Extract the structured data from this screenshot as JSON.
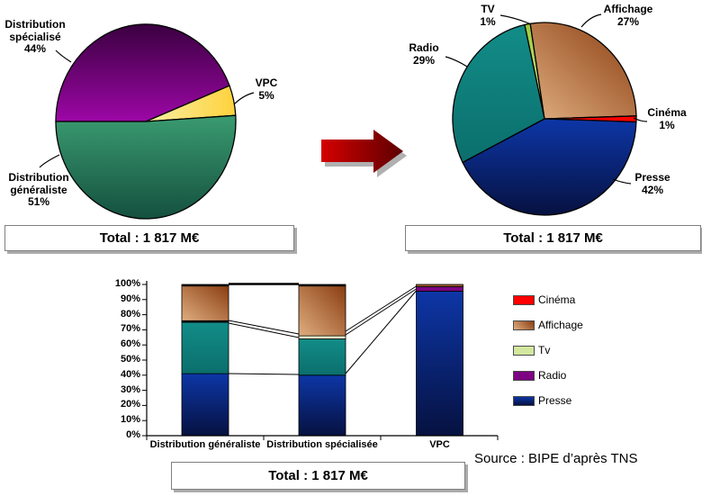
{
  "chart_data": [
    {
      "type": "pie",
      "name": "distribution-split",
      "start_angle": 270,
      "slices": [
        {
          "label": "Distribution spécialisé",
          "pct": "44%",
          "value": 44,
          "color_key": "purple"
        },
        {
          "label": "VPC",
          "pct": "5%",
          "value": 5,
          "color_key": "yellow"
        },
        {
          "label": "Distribution généraliste",
          "pct": "51%",
          "value": 51,
          "color_key": "pieGreen"
        }
      ],
      "total": "Total : 1 817 M€"
    },
    {
      "type": "pie",
      "name": "media-split",
      "start_angle": 347.5,
      "slices": [
        {
          "label": "TV",
          "pct": "1%",
          "value": 1,
          "color_key": "tvGreen"
        },
        {
          "label": "Affichage",
          "pct": "27%",
          "value": 27,
          "color_key": "brown"
        },
        {
          "label": "Cinéma",
          "pct": "1%",
          "value": 1,
          "color_key": "red"
        },
        {
          "label": "Presse",
          "pct": "42%",
          "value": 42,
          "color_key": "navy"
        },
        {
          "label": "Radio",
          "pct": "29%",
          "value": 29,
          "color_key": "teal"
        }
      ],
      "total": "Total : 1 817 M€"
    },
    {
      "type": "bar",
      "stacked": true,
      "name": "media-split-by-channel",
      "categories": [
        "Distribution généraliste",
        "Distribution spécialisée",
        "VPC"
      ],
      "y_ticks": [
        "100%",
        "90%",
        "80%",
        "70%",
        "60%",
        "50%",
        "40%",
        "30%",
        "20%",
        "10%",
        "0%"
      ],
      "ylim": [
        0,
        100
      ],
      "legend_position": "right",
      "legend": [
        {
          "label": "Cinéma",
          "color_key": "red"
        },
        {
          "label": "Affichage",
          "color_key": "brown"
        },
        {
          "label": "Tv",
          "color_key": "legendTv"
        },
        {
          "label": "Radio",
          "color_key": "radioPurple"
        },
        {
          "label": "Presse",
          "color_key": "navy"
        }
      ],
      "bars": [
        {
          "category": "Distribution généraliste",
          "segments": [
            {
              "name": "Presse",
              "pct": 41,
              "color_key": "navy"
            },
            {
              "name": "Radio",
              "pct": 34,
              "color_key": "teal"
            },
            {
              "name": "Tv",
              "pct": 1,
              "color_key": "black"
            },
            {
              "name": "Affichage",
              "pct": 23,
              "color_key": "brown"
            },
            {
              "name": "Cinéma",
              "pct": 1,
              "color_key": "black"
            }
          ]
        },
        {
          "category": "Distribution spécialisée",
          "segments": [
            {
              "name": "Presse",
              "pct": 40,
              "color_key": "navy"
            },
            {
              "name": "Radio",
              "pct": 24,
              "color_key": "teal"
            },
            {
              "name": "Tv",
              "pct": 2,
              "color_key": "cream"
            },
            {
              "name": "Affichage",
              "pct": 33,
              "color_key": "brown"
            },
            {
              "name": "Cinéma",
              "pct": 1,
              "color_key": "black"
            }
          ]
        },
        {
          "category": "VPC",
          "segments": [
            {
              "name": "Presse",
              "pct": 95.5,
              "color_key": "navy"
            },
            {
              "name": "Radio",
              "pct": 3,
              "color_key": "radioPurple"
            },
            {
              "name": "Affichage",
              "pct": 1.5,
              "color_key": "brownSliver"
            }
          ]
        }
      ],
      "total": "Total : 1 817 M€"
    }
  ],
  "source": "Source : BIPE d’après TNS",
  "colors": {
    "purple": {
      "dir": "v",
      "stops": [
        "#3A0040",
        "#9D07A6"
      ]
    },
    "pieGreen": {
      "dir": "v",
      "stops": [
        "#3A9B70",
        "#14503F"
      ]
    },
    "yellow": {
      "dir": "h",
      "stops": [
        "#F7F0A5",
        "#FFD23C"
      ]
    },
    "brown": {
      "dir": "d",
      "stops": [
        "#DFAE80",
        "#8A3D10"
      ]
    },
    "teal": {
      "dir": "v",
      "stops": [
        "#128C88",
        "#0B6F6C"
      ]
    },
    "navy": {
      "dir": "v",
      "stops": [
        "#0D36A6",
        "#061140"
      ]
    },
    "tvGreen": {
      "dir": "v",
      "stops": [
        "#9CCB3B",
        "#D5E8A0"
      ]
    },
    "red": {
      "dir": "f",
      "stops": [
        "#FF0000"
      ]
    },
    "cream": {
      "dir": "f",
      "stops": [
        "#EFF3C8"
      ]
    },
    "radioPurple": {
      "dir": "f",
      "stops": [
        "#7D0382"
      ]
    },
    "brownSliver": {
      "dir": "f",
      "stops": [
        "#9C5A28"
      ]
    },
    "black": {
      "dir": "f",
      "stops": [
        "#000000"
      ]
    },
    "arrowRed": {
      "dir": "h",
      "stops": [
        "#D40000",
        "#5C0000"
      ]
    },
    "legendTv": {
      "dir": "f",
      "stops": [
        "#D3E79E"
      ]
    },
    "arrow_shadow": "#B0B0B0",
    "box_border": "#7F7F7F",
    "box_shadow": "#ABABAB"
  }
}
